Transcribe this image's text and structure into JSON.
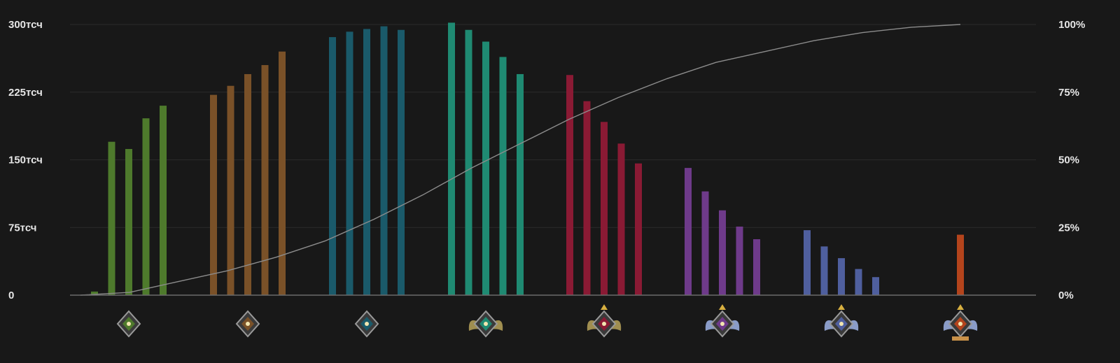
{
  "chart_data": {
    "type": "bar",
    "title": "",
    "xlabel": "",
    "ylabel": "",
    "ylim": [
      0,
      300000
    ],
    "y_ticks": [
      {
        "value": 0,
        "label": "0"
      },
      {
        "value": 75000,
        "label": "75тсч"
      },
      {
        "value": 150000,
        "label": "150тсч"
      },
      {
        "value": 225000,
        "label": "225тсч"
      },
      {
        "value": 300000,
        "label": "300тсч"
      }
    ],
    "y2lim": [
      0,
      100
    ],
    "y2_ticks": [
      {
        "value": 0,
        "label": "0%"
      },
      {
        "value": 25,
        "label": "25%"
      },
      {
        "value": 50,
        "label": "50%"
      },
      {
        "value": 75,
        "label": "75%"
      },
      {
        "value": 100,
        "label": "100%"
      }
    ],
    "grid": true,
    "legend": "none",
    "groups": [
      {
        "rank": "herald",
        "color": "#4e7a2c",
        "values": [
          4000,
          170000,
          162000,
          196000,
          210000
        ]
      },
      {
        "rank": "guardian",
        "color": "#7a5128",
        "values": [
          222000,
          232000,
          245000,
          255000,
          270000
        ]
      },
      {
        "rank": "crusader",
        "color": "#1a5a6a",
        "values": [
          286000,
          292000,
          295000,
          298000,
          294000
        ]
      },
      {
        "rank": "archon",
        "color": "#1f8a72",
        "values": [
          302000,
          294000,
          281000,
          264000,
          245000
        ]
      },
      {
        "rank": "legend",
        "color": "#8a1a34",
        "values": [
          244000,
          215000,
          192000,
          168000,
          146000
        ]
      },
      {
        "rank": "ancient",
        "color": "#6e3a8a",
        "values": [
          141000,
          115000,
          94000,
          76000,
          62000
        ]
      },
      {
        "rank": "divine",
        "color": "#4f5f9e",
        "values": [
          72000,
          54000,
          41000,
          29000,
          20000
        ]
      },
      {
        "rank": "immortal",
        "color": "#b4441c",
        "values": [
          67000
        ]
      }
    ],
    "cumulative_line": {
      "color": "#8c8c8c",
      "values_percent": [
        0,
        1,
        5,
        9,
        14,
        20,
        28,
        37,
        47,
        56,
        65,
        73,
        80,
        86,
        90,
        94,
        97,
        99,
        100
      ]
    }
  }
}
